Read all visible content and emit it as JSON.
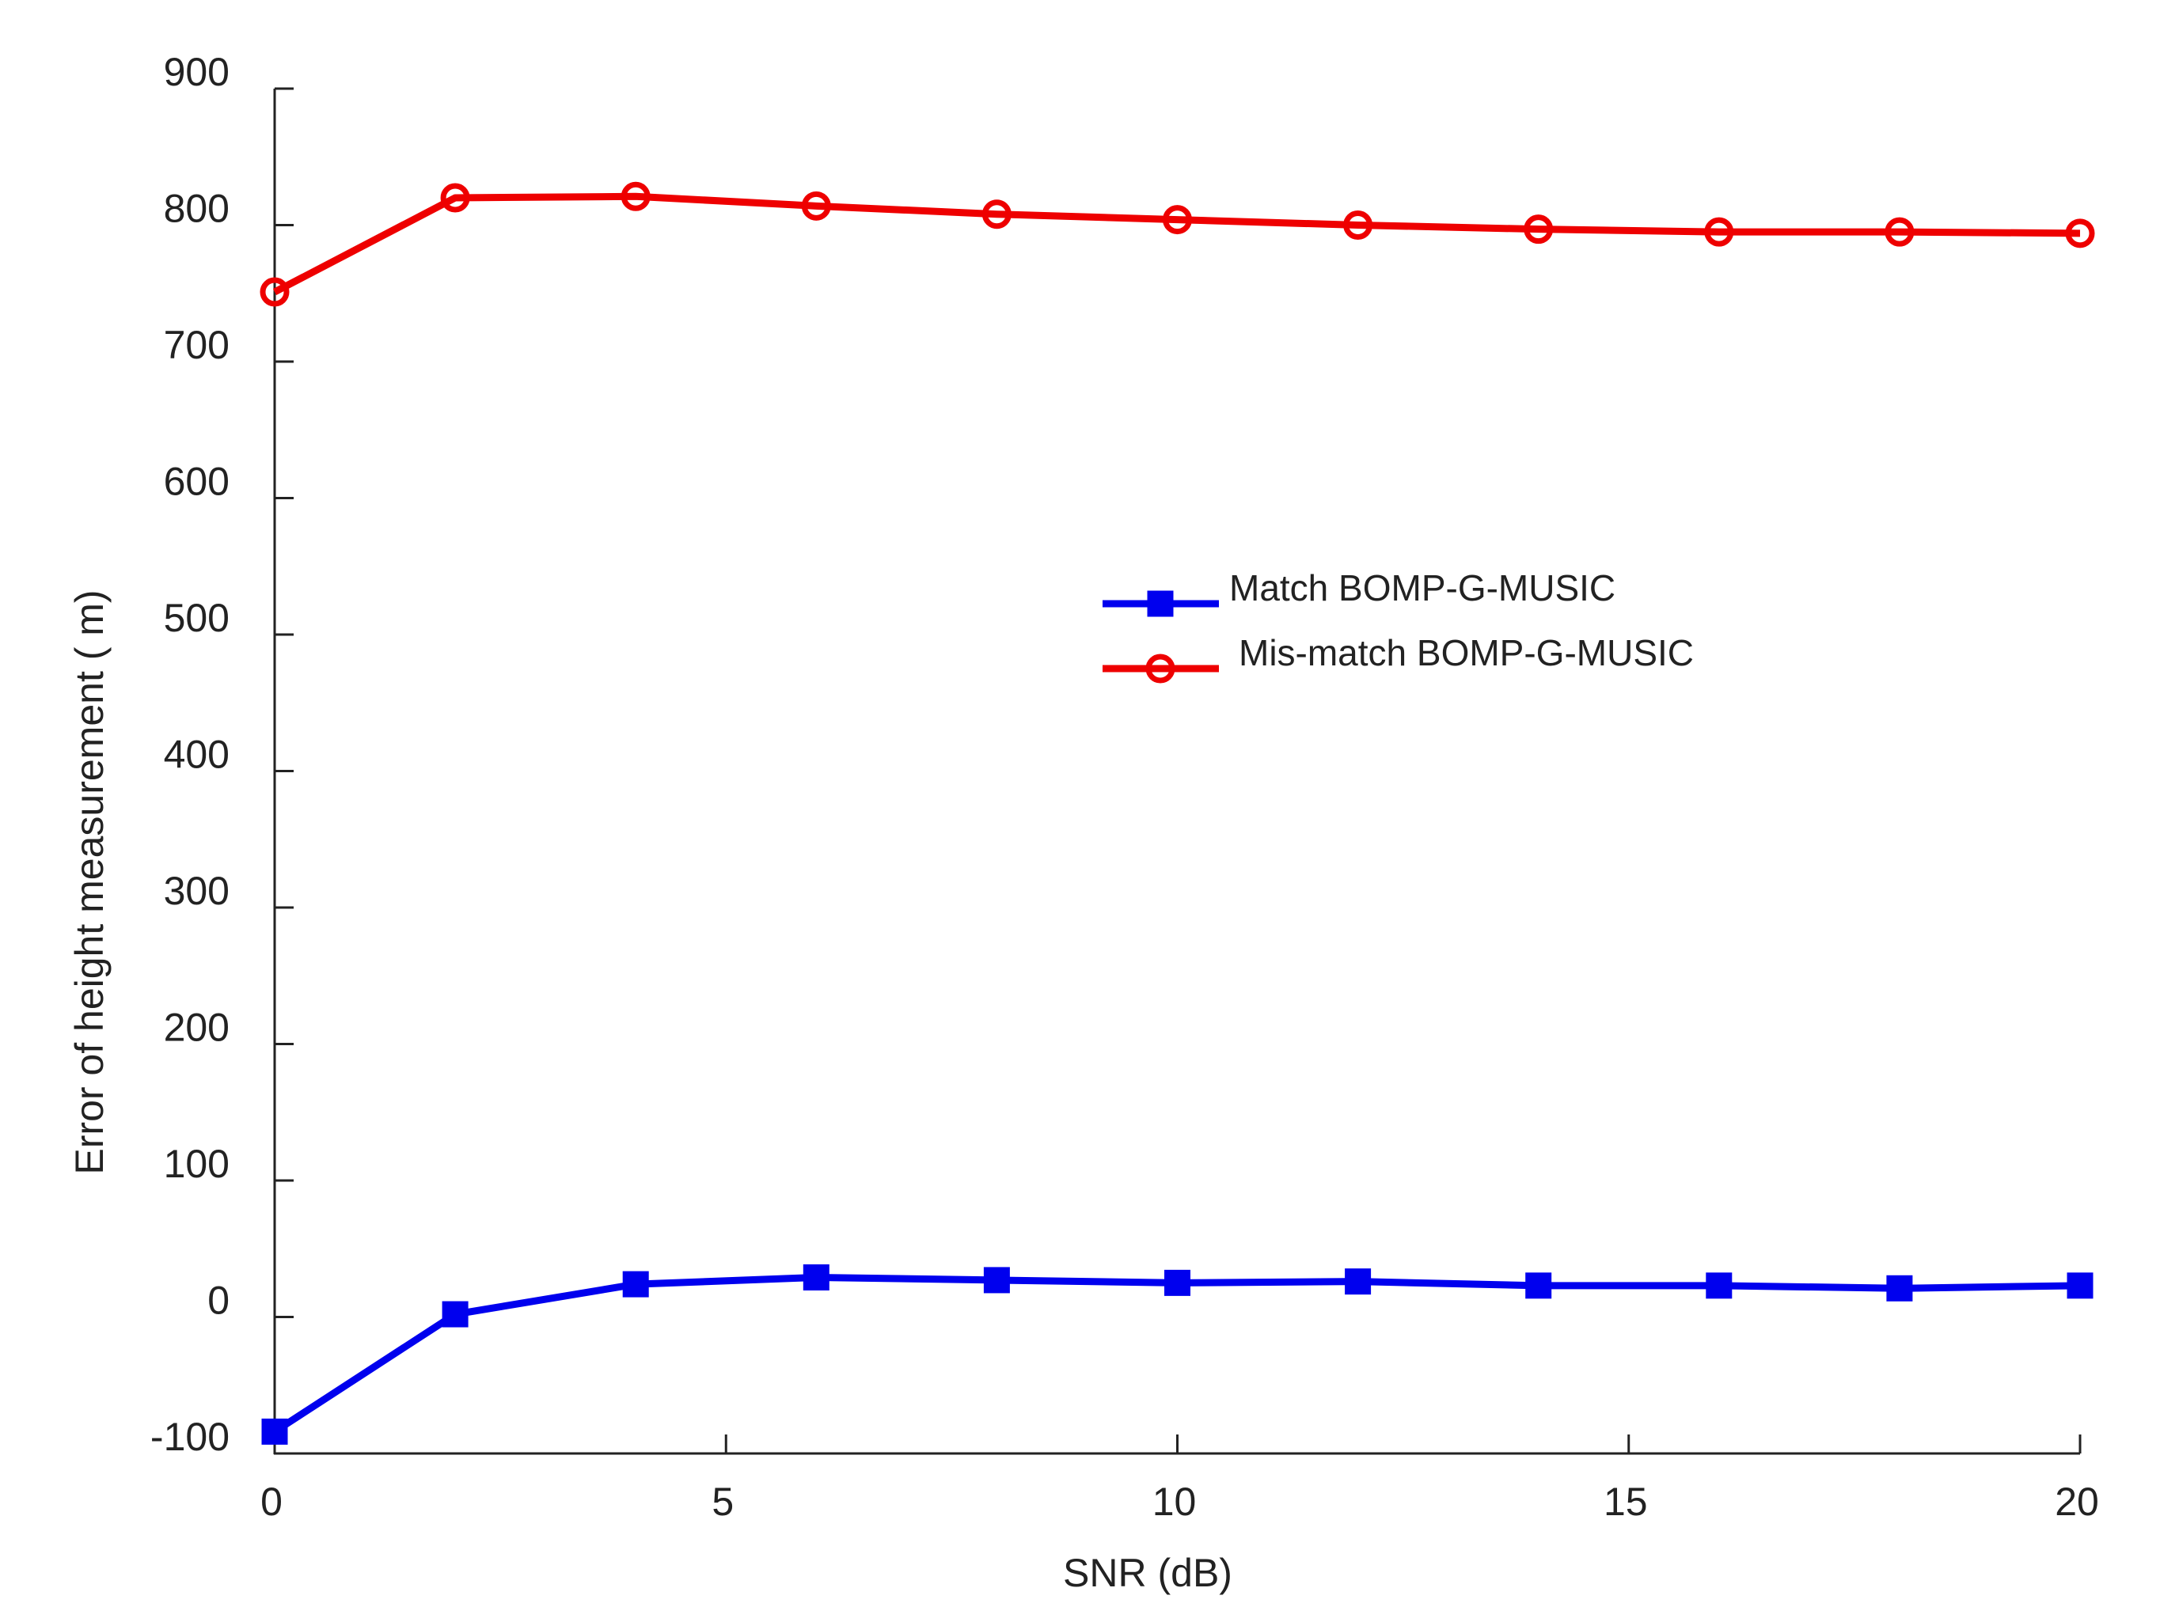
{
  "chart_data": {
    "type": "line",
    "title": "",
    "xlabel": "SNR (dB)",
    "ylabel": "Error of height measurement ( m)",
    "xlim": [
      0,
      20
    ],
    "ylim": [
      -100,
      900
    ],
    "xticks": [
      0,
      5,
      10,
      15,
      20
    ],
    "yticks": [
      -100,
      0,
      100,
      200,
      300,
      400,
      500,
      600,
      700,
      800,
      900
    ],
    "grid": false,
    "legend_position": "center-right",
    "x": [
      0,
      2,
      4,
      6,
      8,
      10,
      12,
      14,
      16,
      18,
      20
    ],
    "series": [
      {
        "name": "Match BOMP-G-MUSIC",
        "color": "#0000ee",
        "marker": "square",
        "values": [
          -84,
          2,
          24,
          29,
          27,
          25,
          26,
          23,
          23,
          21,
          23
        ]
      },
      {
        "name": " Mis-match BOMP-G-MUSIC",
        "color": "#ee0000",
        "marker": "circle",
        "values": [
          751,
          820,
          821,
          814,
          808,
          804,
          800,
          797,
          795,
          795,
          794
        ]
      }
    ]
  }
}
